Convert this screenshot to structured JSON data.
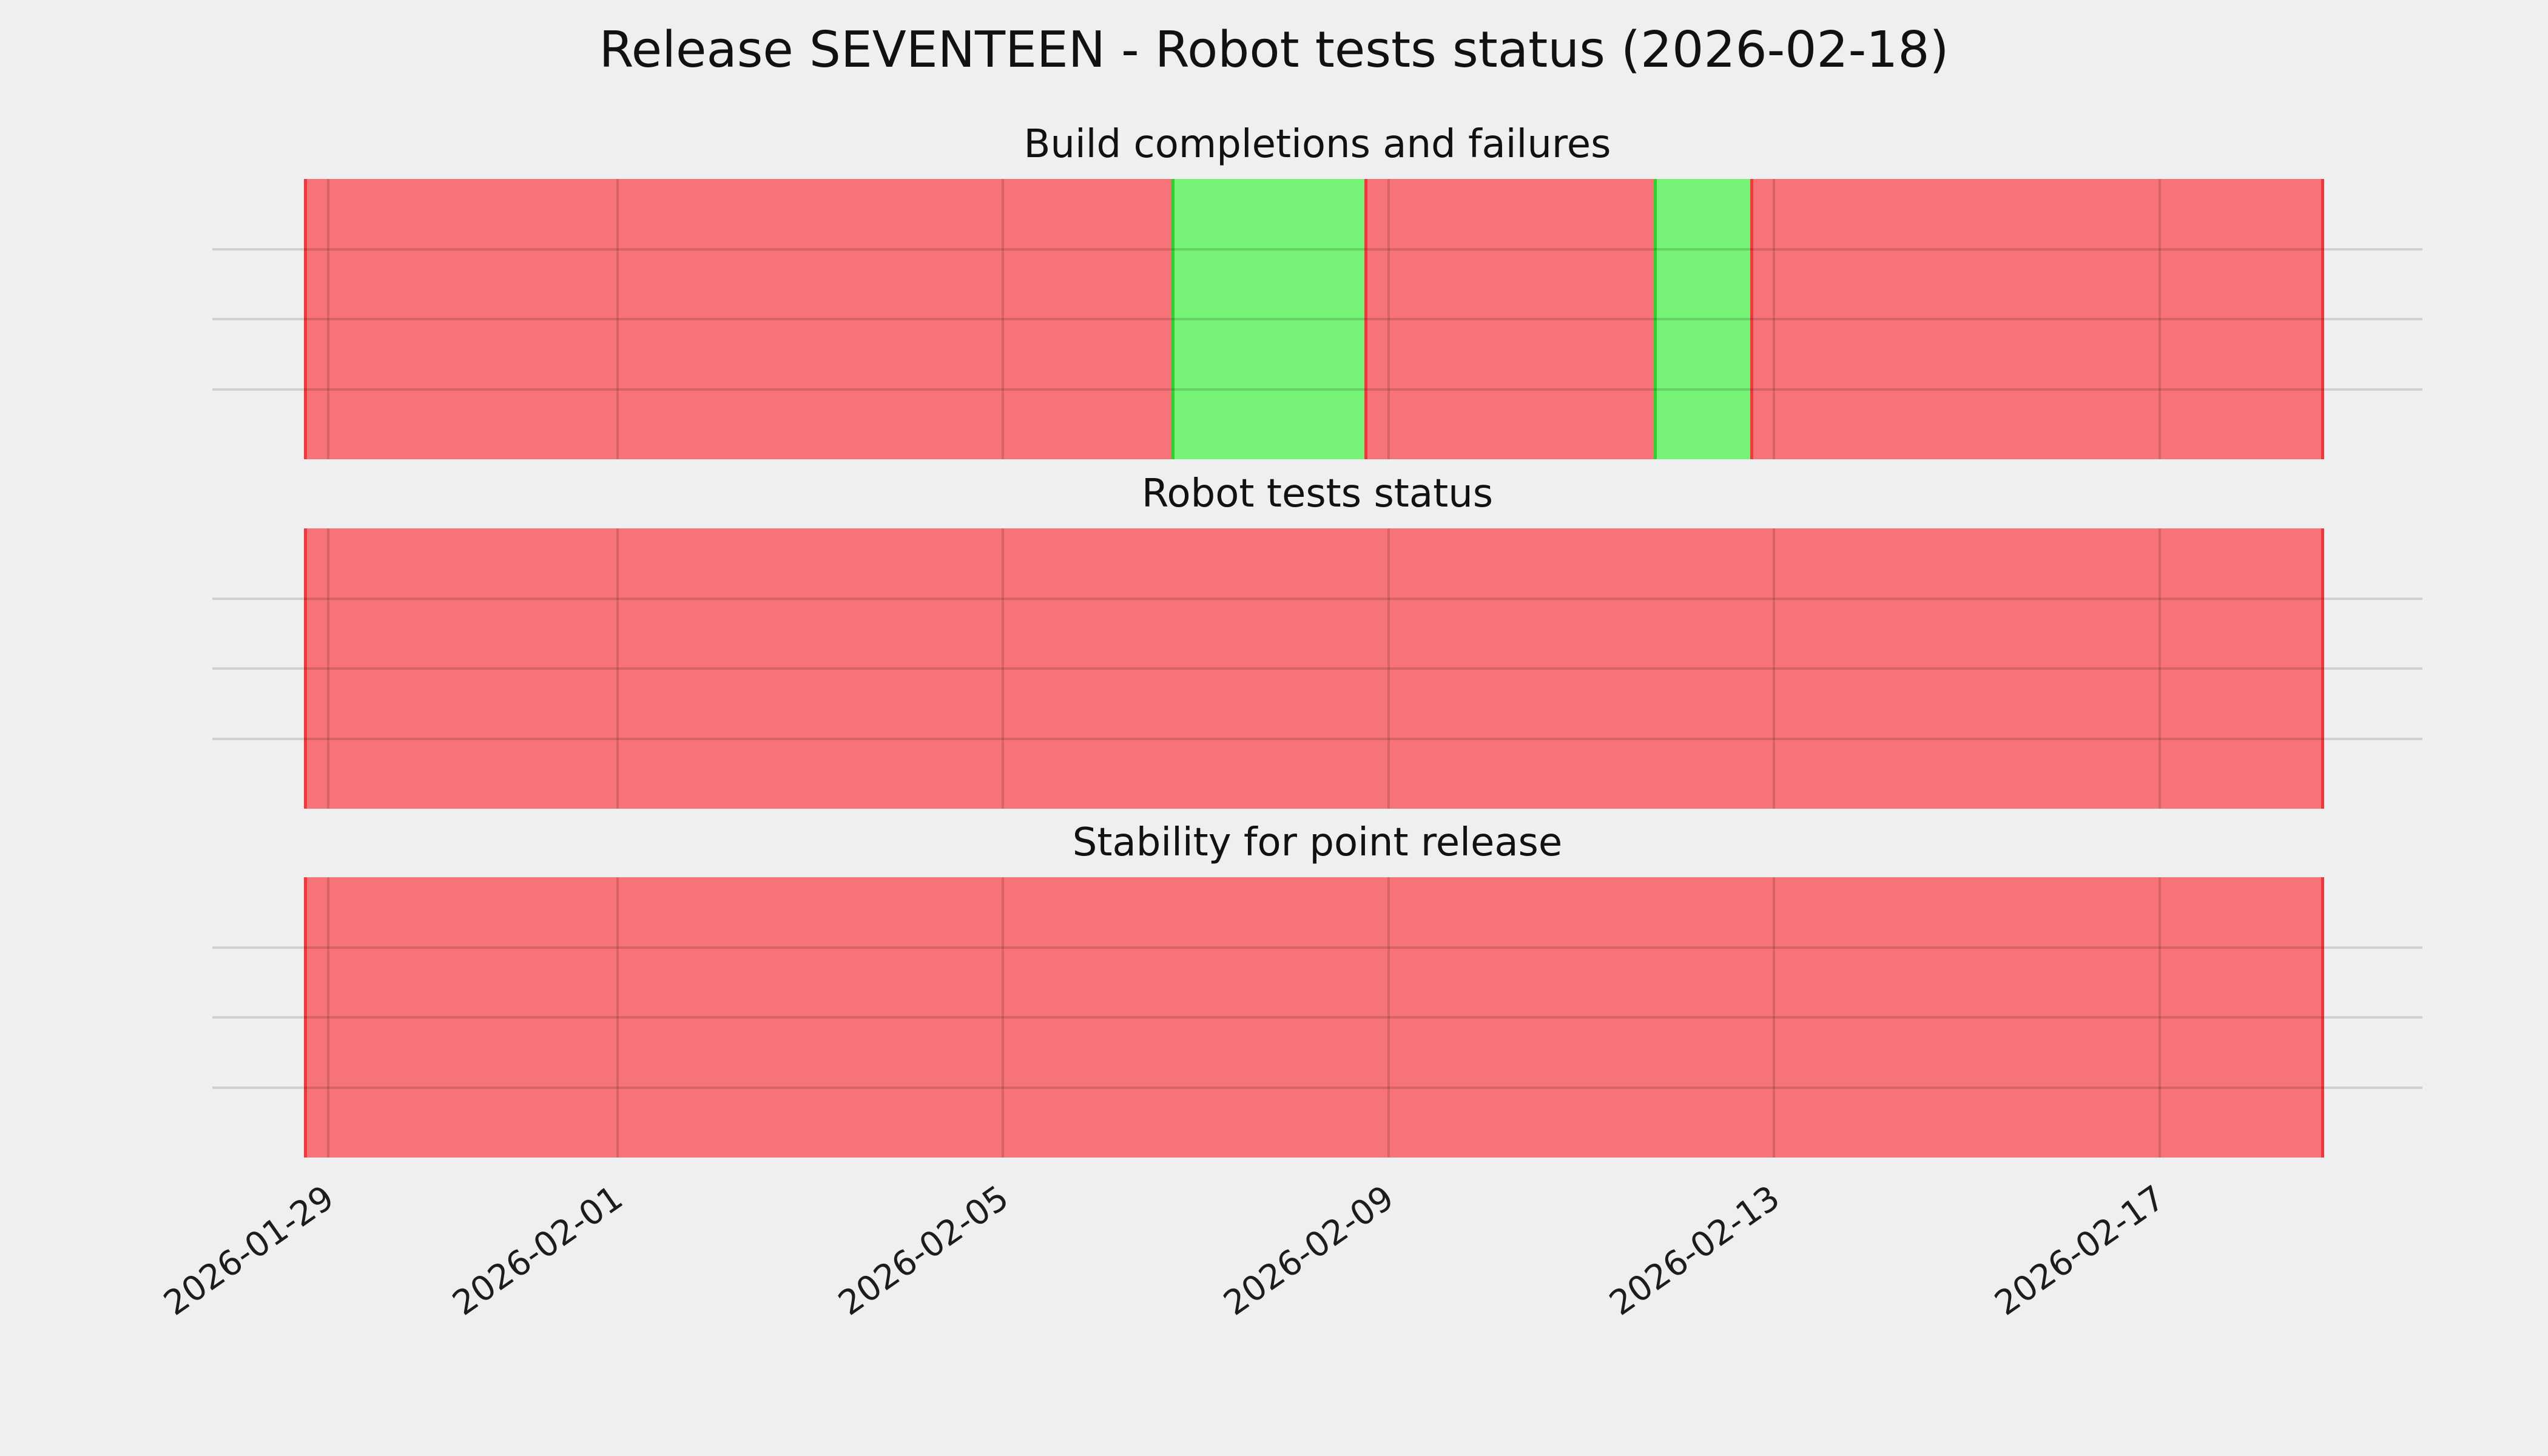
{
  "chart_data": {
    "type": "timeline",
    "title": "Release SEVENTEEN - Robot tests status (2026-02-18)",
    "background": "#efefef",
    "x_axis": {
      "tick_labels": [
        "2026-01-29",
        "2026-02-01",
        "2026-02-05",
        "2026-02-09",
        "2026-02-13",
        "2026-02-17"
      ],
      "tick_rotation_deg": 35,
      "range_start": "2026-01-27T19:00:00",
      "range_end": "2026-02-19T17:30:00",
      "grid": true
    },
    "y_axis": {
      "range": [
        0,
        4
      ],
      "gridlines_at": [
        1,
        2,
        3
      ],
      "tick_labels_visible": false,
      "grid": true
    },
    "status_colors": {
      "pass_fill": "#76f276",
      "pass_edge": "#2fd12f",
      "fail_fill": "#f67377",
      "fail_edge": "#f0383c"
    },
    "data_start": "2026-01-28T18:00:00",
    "data_end": "2026-02-18T17:00:00",
    "subplots": [
      {
        "title": "Build completions and failures",
        "segments": [
          {
            "status": "fail",
            "from": "2026-01-28T18:00:00",
            "to": "2026-02-06T18:00:00"
          },
          {
            "status": "pass",
            "from": "2026-02-06T18:00:00",
            "to": "2026-02-08T18:00:00"
          },
          {
            "status": "fail",
            "from": "2026-02-08T18:00:00",
            "to": "2026-02-11T18:00:00"
          },
          {
            "status": "pass",
            "from": "2026-02-11T18:00:00",
            "to": "2026-02-12T18:00:00"
          },
          {
            "status": "fail",
            "from": "2026-02-12T18:00:00",
            "to": "2026-02-18T17:00:00"
          }
        ]
      },
      {
        "title": "Robot tests status",
        "segments": [
          {
            "status": "fail",
            "from": "2026-01-28T18:00:00",
            "to": "2026-02-18T17:00:00"
          }
        ]
      },
      {
        "title": "Stability for point release",
        "segments": [
          {
            "status": "fail",
            "from": "2026-01-28T18:00:00",
            "to": "2026-02-18T17:00:00"
          }
        ]
      }
    ]
  }
}
